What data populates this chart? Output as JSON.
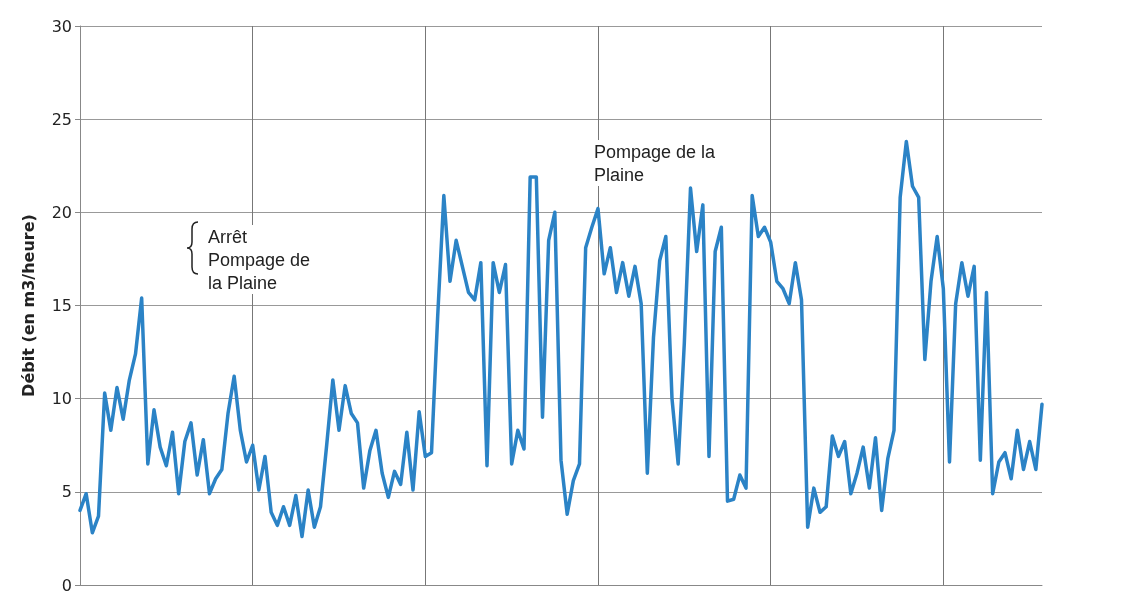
{
  "chart_data": {
    "type": "line",
    "ylabel": "Débit (en m3/heure)",
    "annotations": [
      "Arrêt Pompage de la Plaine",
      "Pompage de la Plaine"
    ],
    "categories": [
      null,
      null,
      null,
      null,
      null,
      null,
      null,
      null,
      null,
      null,
      null,
      null,
      null,
      null,
      null,
      null,
      null,
      null,
      null,
      null,
      null,
      null,
      null,
      null,
      null,
      null,
      null,
      null,
      null,
      null,
      null,
      null,
      null,
      null,
      null,
      null,
      null,
      null,
      null,
      null,
      null,
      null,
      null,
      null,
      null,
      null,
      null,
      null,
      null,
      null,
      null,
      null,
      null,
      null,
      null,
      null,
      null,
      null,
      null,
      null,
      null,
      null,
      null,
      null,
      null,
      null,
      null,
      null,
      null,
      null,
      null,
      null,
      null,
      null,
      null,
      null,
      null,
      null,
      null,
      null,
      null,
      null,
      null,
      null,
      null,
      null,
      null,
      null,
      null,
      null,
      null,
      null,
      null,
      null,
      null,
      null,
      null,
      null,
      null,
      null,
      null,
      null,
      null,
      null,
      null,
      null,
      null,
      null,
      null,
      null,
      null,
      null,
      null,
      null,
      null,
      null,
      null,
      null,
      null,
      null,
      null,
      null,
      null,
      null,
      null,
      null,
      null,
      null,
      null,
      null,
      null,
      null,
      null,
      null,
      null,
      null,
      null,
      null,
      null,
      null,
      null,
      null,
      null,
      null,
      null,
      null,
      null,
      null,
      null,
      null,
      null,
      null,
      null,
      null,
      null,
      null,
      null
    ],
    "series": [
      {
        "color": "#2b83c6",
        "values": [
          4.0,
          4.9,
          2.8,
          3.7,
          10.3,
          8.3,
          10.6,
          8.9,
          11.0,
          12.4,
          15.4,
          6.5,
          9.4,
          7.4,
          6.4,
          8.2,
          4.9,
          7.7,
          8.7,
          5.9,
          7.8,
          4.9,
          5.7,
          6.2,
          9.2,
          11.2,
          8.3,
          6.6,
          7.5,
          5.1,
          6.9,
          3.9,
          3.2,
          4.2,
          3.2,
          4.8,
          2.6,
          5.1,
          3.1,
          4.2,
          7.5,
          11.0,
          8.3,
          10.7,
          9.2,
          8.7,
          5.2,
          7.2,
          8.3,
          6.0,
          4.7,
          6.1,
          5.4,
          8.2,
          5.1,
          9.3,
          6.9,
          7.1,
          14.4,
          20.9,
          16.3,
          18.5,
          17.1,
          15.7,
          15.3,
          17.3,
          6.4,
          17.3,
          15.7,
          17.2,
          6.5,
          8.3,
          7.3,
          21.9,
          21.9,
          9.0,
          18.5,
          20.0,
          6.7,
          3.8,
          5.6,
          6.5,
          18.1,
          19.2,
          20.2,
          16.7,
          18.1,
          15.7,
          17.3,
          15.5,
          17.1,
          15.1,
          6.0,
          13.3,
          17.4,
          18.7,
          10.0,
          6.5,
          13.0,
          21.3,
          17.9,
          20.4,
          6.9,
          17.9,
          19.2,
          4.5,
          4.6,
          5.9,
          5.2,
          20.9,
          18.7,
          19.2,
          18.4,
          16.3,
          15.9,
          15.1,
          17.3,
          15.3,
          3.1,
          5.2,
          3.9,
          4.2,
          8.0,
          6.9,
          7.7,
          4.9,
          6.0,
          7.4,
          5.2,
          7.9,
          4.0,
          6.8,
          8.3,
          20.8,
          23.8,
          21.4,
          20.8,
          12.1,
          16.3,
          18.7,
          15.9,
          6.6,
          15.1,
          17.3,
          15.5,
          17.1,
          6.7,
          15.7,
          4.9,
          6.6,
          7.1,
          5.7,
          8.3,
          6.2,
          7.7,
          6.2,
          9.7
        ]
      }
    ],
    "ylim": [
      0,
      30
    ],
    "yticks": [
      0,
      5,
      10,
      15,
      20,
      25,
      30
    ],
    "grid": true,
    "line_style": "solid",
    "tick_labels": "y"
  }
}
